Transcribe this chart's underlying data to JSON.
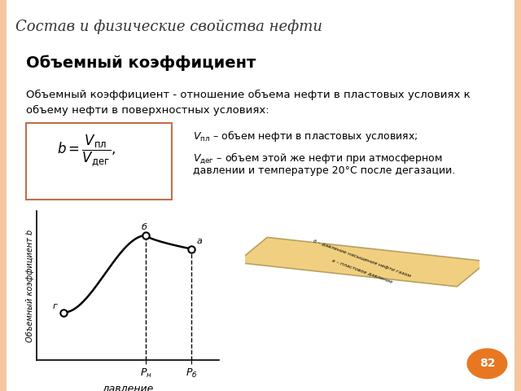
{
  "title": "Состав и физические свойства нефти",
  "subtitle": "Объемный коэффициент",
  "body_text": "Объемный коэффициент - отношение объема нефти в пластовых условиях к\nобъему нефти в поверхностных условиях:",
  "formula_box_text": "b = V_пл / V_дег ,",
  "vpl_text": "V_пл  – объем нефти в пластовых условиях;",
  "vdeg_text": "V_дег  – объем этой же нефти при атмосферном\nдавлении и температуре 20°С после дегазации.",
  "graph_ylabel": "Объемный коэффициент b",
  "graph_xlabel": "давление",
  "x_ticks": [
    "P_н",
    "P_б"
  ],
  "point_labels": [
    "г",
    "б",
    "а"
  ],
  "slide_number": "82",
  "background_color": "#ffffff",
  "accent_color": "#f5c6a0",
  "title_color": "#333333",
  "border_left_color": "#f5c6a0",
  "border_right_color": "#f5c6a0",
  "formula_border_color": "#c0704a",
  "slide_num_color": "#e87722",
  "ruler_color": "#f0d080"
}
